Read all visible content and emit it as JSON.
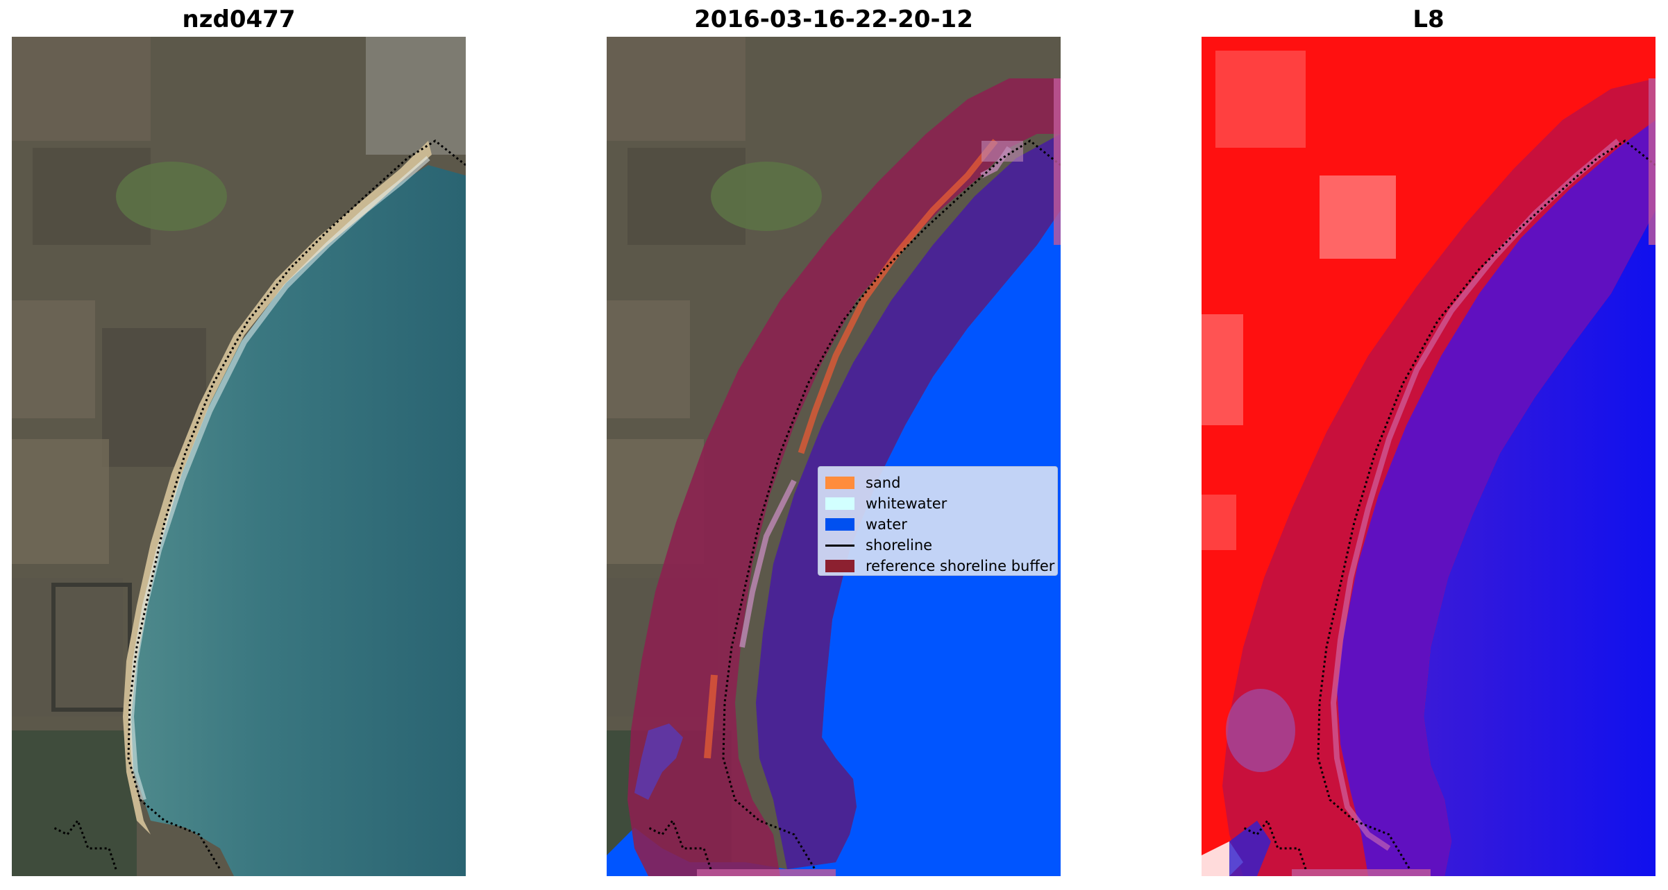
{
  "panels": [
    {
      "title": "nzd0477"
    },
    {
      "title": "2016-03-16-22-20-12"
    },
    {
      "title": "L8"
    }
  ],
  "legend": {
    "items": [
      {
        "label": "sand",
        "color": "#ff8c3c",
        "kind": "patch"
      },
      {
        "label": "whitewater",
        "color": "#d2ffff",
        "kind": "patch"
      },
      {
        "label": "water",
        "color": "#0050f0",
        "kind": "patch"
      },
      {
        "label": "shoreline",
        "color": "#000000",
        "kind": "line"
      },
      {
        "label": "reference shoreline buffer",
        "color": "#8c2030",
        "kind": "patch"
      }
    ]
  },
  "colors": {
    "land": "#5e5a4c",
    "sea": "#2f6e78",
    "beach": "#c8b48c",
    "buffer": "#8c2050",
    "water_class": "#0055ff",
    "index_red": "#ff1010",
    "index_blue": "#1010ee"
  }
}
